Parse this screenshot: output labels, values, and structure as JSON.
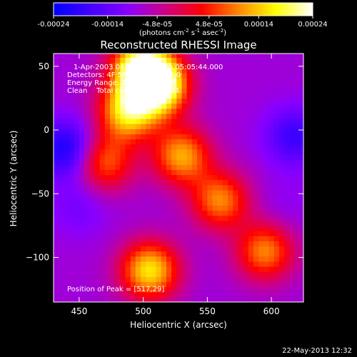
{
  "colorbar": {
    "ticks": [
      "-0.00024",
      "-0.00014",
      "-4.8e-05",
      "4.8e-05",
      "0.00014",
      "0.00024"
    ],
    "tick_values": [
      -0.00024,
      -0.00014,
      -4.8e-05,
      4.8e-05,
      0.00014,
      0.00024
    ],
    "range": [
      -0.00024,
      0.00024
    ],
    "units_text": "(photons cm",
    "units_exp1": "-2",
    "units_mid": " s",
    "units_exp2": "-1",
    "units_mid2": " asec",
    "units_exp3": "-2",
    "units_close": ")",
    "stops": [
      "#0000ff",
      "#4400ff",
      "#8800ff",
      "#cc0088",
      "#ff0000",
      "#ff8800",
      "#ffff00",
      "#ffffff"
    ]
  },
  "annotations": {
    "time_range": "1-Apr-2003 04:59:58.000 to 05:05:44.000",
    "detectors": "Detectors: 4F 5F 6F 7F 8F, Att 0",
    "energy_range": "Energy Range: 25.0 - 50.0 keV",
    "clean": "Clean    Total counts: 1.88E+04",
    "peak": "Position of Peak = [517,29]"
  },
  "footer": {
    "timestamp": "22-May-2013 12:32"
  },
  "chart_data": {
    "type": "heatmap",
    "title": "Reconstructed RHESSI Image",
    "xlabel": "Heliocentric X (arcsec)",
    "ylabel": "Heliocentric Y (arcsec)",
    "xlim": [
      430,
      625
    ],
    "ylim": [
      -135,
      60
    ],
    "xticks": [
      450,
      500,
      550,
      600
    ],
    "yticks": [
      50,
      0,
      -50,
      -100
    ],
    "ytick_labels": [
      "50",
      "0",
      "−50",
      "−100"
    ],
    "peak_position": [
      517,
      29
    ],
    "bright_features": [
      {
        "x": 512,
        "y": 35,
        "intensity": 0.00024
      },
      {
        "x": 498,
        "y": 50,
        "intensity": 0.0002
      },
      {
        "x": 488,
        "y": 15,
        "intensity": 0.00016
      },
      {
        "x": 530,
        "y": -20,
        "intensity": 0.00012
      },
      {
        "x": 505,
        "y": -110,
        "intensity": 0.00016
      },
      {
        "x": 560,
        "y": -55,
        "intensity": 0.0001
      },
      {
        "x": 595,
        "y": -95,
        "intensity": 0.0001
      },
      {
        "x": 470,
        "y": -25,
        "intensity": 8e-05
      }
    ],
    "negative_features": [
      {
        "x": 440,
        "y": -15,
        "intensity": -0.00022
      },
      {
        "x": 618,
        "y": -5,
        "intensity": -0.00018
      },
      {
        "x": 450,
        "y": -60,
        "intensity": -0.00012
      },
      {
        "x": 610,
        "y": -60,
        "intensity": -0.0001
      }
    ]
  }
}
